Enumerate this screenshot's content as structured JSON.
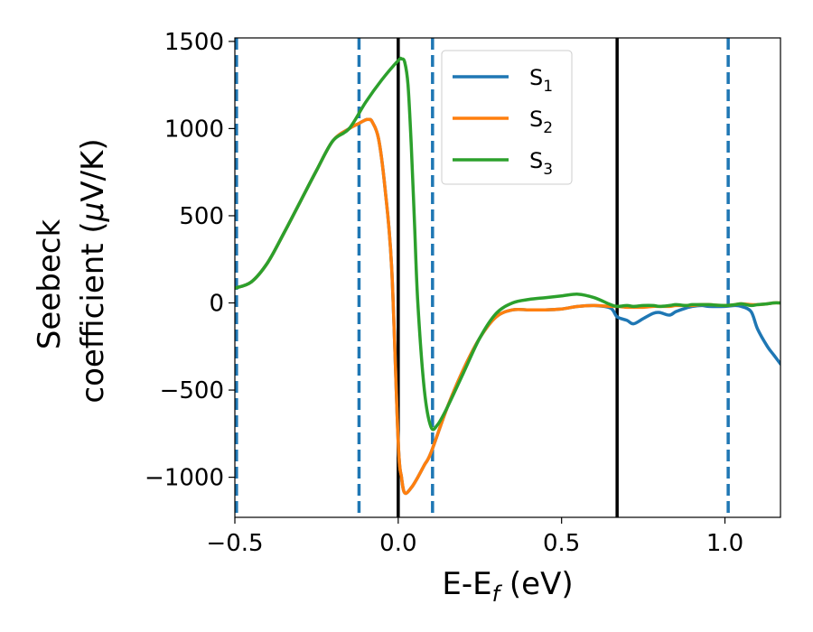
{
  "chart_data": {
    "type": "line",
    "xlabel": "E-E",
    "xlabel_sub": "f",
    "xlabel_unit": " (eV)",
    "ylabel_line1": "Seebeck",
    "ylabel_line2": "coefficient  (",
    "ylabel_mu": "μ",
    "ylabel_unit": "V/K)",
    "xlim": [
      -0.5,
      1.17
    ],
    "ylim": [
      -1230,
      1520
    ],
    "x_ticks": [
      -0.5,
      0.0,
      0.5,
      1.0
    ],
    "x_tick_labels": [
      "−0.5",
      "0.0",
      "0.5",
      "1.0"
    ],
    "y_ticks": [
      -1000,
      -500,
      0,
      500,
      1000,
      1500
    ],
    "y_tick_labels": [
      "−1000",
      "−500",
      "0",
      "500",
      "1000",
      "1500"
    ],
    "grid": false,
    "legend_position": "top-center",
    "vertical_lines_solid": [
      0.0,
      0.67
    ],
    "vertical_lines_dashed": [
      -0.495,
      -0.12,
      0.105,
      1.01
    ],
    "vline_solid_color": "#000000",
    "vline_dashed_color": "#1f77b4",
    "series": [
      {
        "name": "S",
        "sub": "1",
        "color": "#1f77b4",
        "x": [
          -0.5,
          -0.45,
          -0.4,
          -0.35,
          -0.3,
          -0.25,
          -0.2,
          -0.15,
          -0.12,
          -0.1,
          -0.09,
          -0.08,
          -0.06,
          -0.04,
          -0.02,
          0.0,
          0.01,
          0.02,
          0.04,
          0.06,
          0.08,
          0.1,
          0.15,
          0.2,
          0.25,
          0.3,
          0.35,
          0.4,
          0.45,
          0.5,
          0.55,
          0.6,
          0.65,
          0.67,
          0.7,
          0.72,
          0.75,
          0.78,
          0.8,
          0.83,
          0.85,
          0.88,
          0.9,
          0.93,
          0.95,
          1.0,
          1.03,
          1.05,
          1.08,
          1.1,
          1.13,
          1.15,
          1.17
        ],
        "values": [
          85,
          120,
          230,
          400,
          580,
          760,
          930,
          1000,
          1030,
          1050,
          1052,
          1040,
          940,
          650,
          200,
          -800,
          -1000,
          -1090,
          -1060,
          -1000,
          -930,
          -860,
          -600,
          -380,
          -200,
          -80,
          -40,
          -40,
          -40,
          -35,
          -20,
          -15,
          -30,
          -80,
          -100,
          -120,
          -90,
          -60,
          -55,
          -70,
          -50,
          -30,
          -20,
          -15,
          -20,
          -20,
          -15,
          -20,
          -50,
          -150,
          -250,
          -300,
          -350
        ]
      },
      {
        "name": "S",
        "sub": "2",
        "color": "#ff7f0e",
        "x": [
          -0.5,
          -0.45,
          -0.4,
          -0.35,
          -0.3,
          -0.25,
          -0.2,
          -0.15,
          -0.12,
          -0.1,
          -0.09,
          -0.08,
          -0.06,
          -0.04,
          -0.02,
          0.0,
          0.01,
          0.02,
          0.04,
          0.06,
          0.08,
          0.1,
          0.15,
          0.2,
          0.25,
          0.3,
          0.35,
          0.4,
          0.45,
          0.5,
          0.55,
          0.6,
          0.65,
          0.67,
          0.7,
          0.72,
          0.75,
          0.78,
          0.8,
          0.83,
          0.85,
          0.88,
          0.9,
          0.93,
          0.95,
          1.0,
          1.03,
          1.05,
          1.08,
          1.1,
          1.13,
          1.15,
          1.17
        ],
        "values": [
          85,
          120,
          230,
          400,
          580,
          760,
          930,
          1000,
          1030,
          1050,
          1052,
          1040,
          940,
          650,
          200,
          -800,
          -1000,
          -1090,
          -1060,
          -1000,
          -930,
          -860,
          -600,
          -380,
          -200,
          -80,
          -40,
          -40,
          -40,
          -35,
          -20,
          -15,
          -20,
          -20,
          -25,
          -25,
          -25,
          -20,
          -20,
          -20,
          -15,
          -15,
          -15,
          -10,
          -10,
          -15,
          -10,
          -5,
          -10,
          -10,
          -5,
          0,
          0
        ]
      },
      {
        "name": "S",
        "sub": "3",
        "color": "#2ca02c",
        "x": [
          -0.5,
          -0.45,
          -0.4,
          -0.35,
          -0.3,
          -0.25,
          -0.2,
          -0.15,
          -0.1,
          -0.05,
          0.0,
          0.01,
          0.02,
          0.03,
          0.04,
          0.05,
          0.06,
          0.08,
          0.1,
          0.12,
          0.15,
          0.2,
          0.25,
          0.3,
          0.35,
          0.4,
          0.45,
          0.5,
          0.55,
          0.6,
          0.65,
          0.67,
          0.7,
          0.72,
          0.75,
          0.78,
          0.8,
          0.83,
          0.85,
          0.88,
          0.9,
          0.93,
          0.95,
          1.0,
          1.03,
          1.05,
          1.08,
          1.1,
          1.13,
          1.15,
          1.17
        ],
        "values": [
          85,
          120,
          230,
          400,
          580,
          760,
          930,
          1000,
          1150,
          1280,
          1390,
          1400,
          1380,
          1250,
          900,
          450,
          0,
          -500,
          -710,
          -700,
          -600,
          -400,
          -200,
          -60,
          0,
          20,
          30,
          40,
          50,
          30,
          -10,
          -20,
          -15,
          -20,
          -15,
          -15,
          -20,
          -15,
          -10,
          -15,
          -10,
          -10,
          -10,
          -15,
          -10,
          -5,
          -15,
          -10,
          -5,
          0,
          0
        ]
      }
    ]
  }
}
